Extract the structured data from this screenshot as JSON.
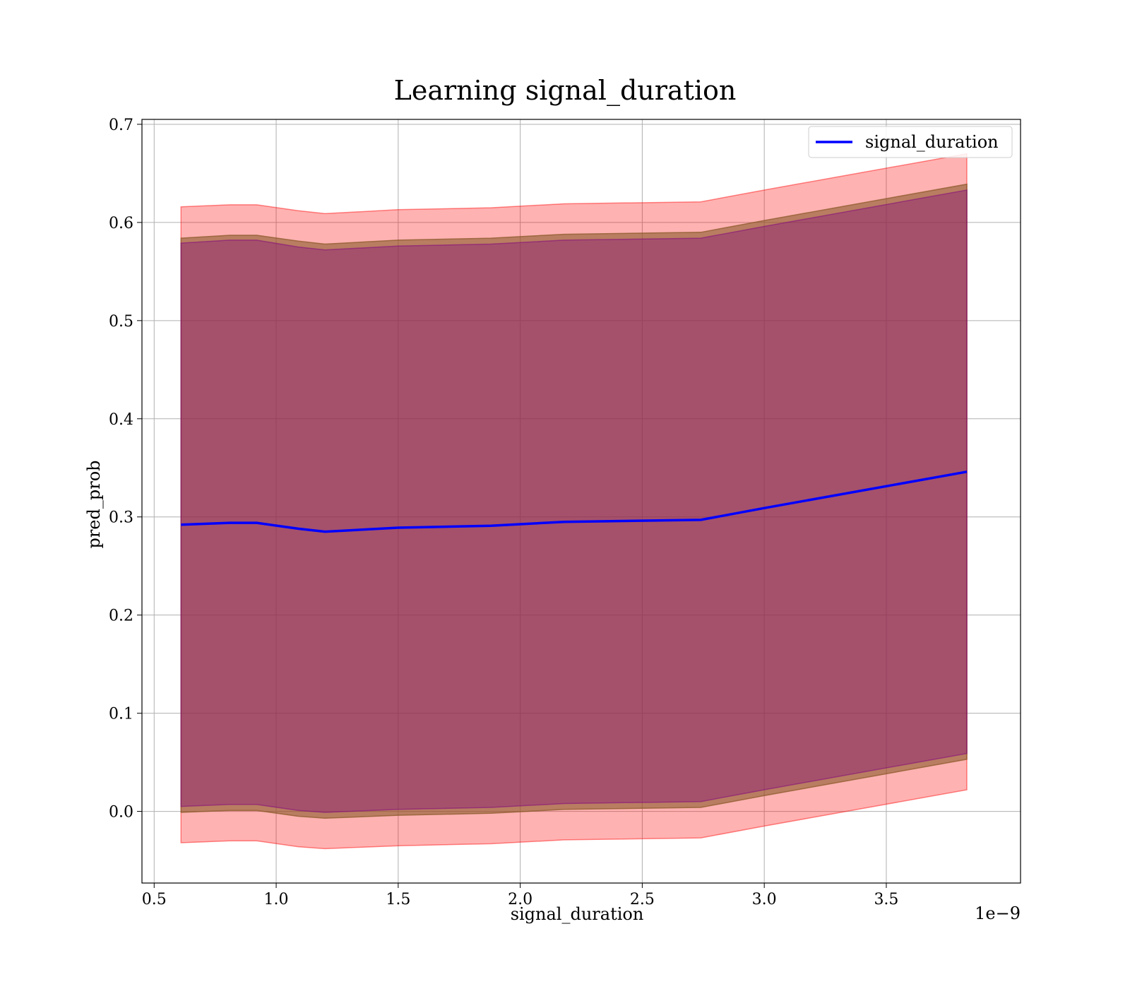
{
  "chart_data": {
    "type": "line",
    "title": "Learning signal_duration",
    "xlabel": "signal_duration",
    "ylabel": "pred_prob",
    "x_offset_label": "1e−9",
    "xlim": [
      0.45,
      4.05
    ],
    "ylim": [
      -0.073,
      0.705
    ],
    "grid": true,
    "legend_position": "top-right",
    "x_ticks": [
      0.5,
      1.0,
      1.5,
      2.0,
      2.5,
      3.0,
      3.5
    ],
    "x_tick_labels": [
      "0.5",
      "1.0",
      "1.5",
      "2.0",
      "2.5",
      "3.0",
      "3.5"
    ],
    "y_ticks": [
      0.0,
      0.1,
      0.2,
      0.3,
      0.4,
      0.5,
      0.6,
      0.7
    ],
    "y_tick_labels": [
      "0.0",
      "0.1",
      "0.2",
      "0.3",
      "0.4",
      "0.5",
      "0.6",
      "0.7"
    ],
    "x": [
      0.61,
      0.81,
      0.92,
      1.09,
      1.2,
      1.5,
      1.88,
      2.18,
      2.74,
      3.0,
      3.83
    ],
    "series": [
      {
        "name": "signal_duration",
        "color": "#0000ff",
        "values": [
          0.292,
          0.294,
          0.294,
          0.288,
          0.285,
          0.289,
          0.291,
          0.295,
          0.297,
          0.309,
          0.346
        ]
      }
    ],
    "bands": [
      {
        "color": "#ff0000",
        "opacity": 0.3,
        "upper": [
          0.616,
          0.618,
          0.618,
          0.612,
          0.609,
          0.613,
          0.615,
          0.619,
          0.621,
          0.633,
          0.67
        ],
        "lower": [
          -0.032,
          -0.03,
          -0.03,
          -0.036,
          -0.038,
          -0.035,
          -0.033,
          -0.029,
          -0.027,
          -0.015,
          0.022
        ]
      },
      {
        "color": "#8b5a2b",
        "opacity": 0.6,
        "upper": [
          0.584,
          0.587,
          0.587,
          0.581,
          0.578,
          0.582,
          0.584,
          0.588,
          0.59,
          0.602,
          0.639
        ],
        "lower": [
          -0.001,
          0.001,
          0.001,
          -0.005,
          -0.007,
          -0.004,
          -0.002,
          0.002,
          0.004,
          0.016,
          0.053
        ]
      },
      {
        "color": "#800080",
        "opacity": 0.35,
        "upper": [
          0.579,
          0.582,
          0.582,
          0.575,
          0.572,
          0.576,
          0.578,
          0.582,
          0.584,
          0.596,
          0.633
        ],
        "lower": [
          0.005,
          0.007,
          0.007,
          0.001,
          -0.001,
          0.002,
          0.004,
          0.008,
          0.01,
          0.022,
          0.059
        ]
      }
    ]
  }
}
